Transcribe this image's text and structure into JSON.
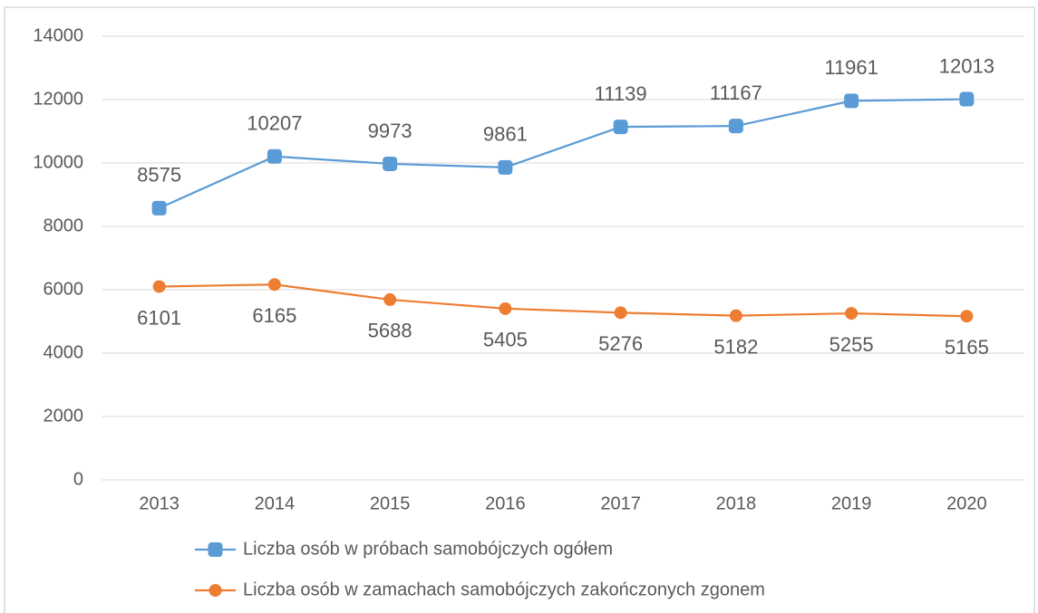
{
  "chart_data": {
    "type": "line",
    "categories": [
      "2013",
      "2014",
      "2015",
      "2016",
      "2017",
      "2018",
      "2019",
      "2020"
    ],
    "series": [
      {
        "name": "Liczba osób w próbach samobójczych ogółem",
        "color": "#5b9bd5",
        "marker": "square",
        "label_position": "above",
        "values": [
          8575,
          10207,
          9973,
          9861,
          11139,
          11167,
          11961,
          12013
        ]
      },
      {
        "name": "Liczba osób w zamachach samobójczych zakończonych zgonem",
        "color": "#ed7d31",
        "marker": "circle",
        "label_position": "below",
        "values": [
          6101,
          6165,
          5688,
          5405,
          5276,
          5182,
          5255,
          5165
        ]
      }
    ],
    "ylim": [
      0,
      14000
    ],
    "yticks": [
      0,
      2000,
      4000,
      6000,
      8000,
      10000,
      12000,
      14000
    ],
    "grid": true,
    "legend": "bottom"
  }
}
